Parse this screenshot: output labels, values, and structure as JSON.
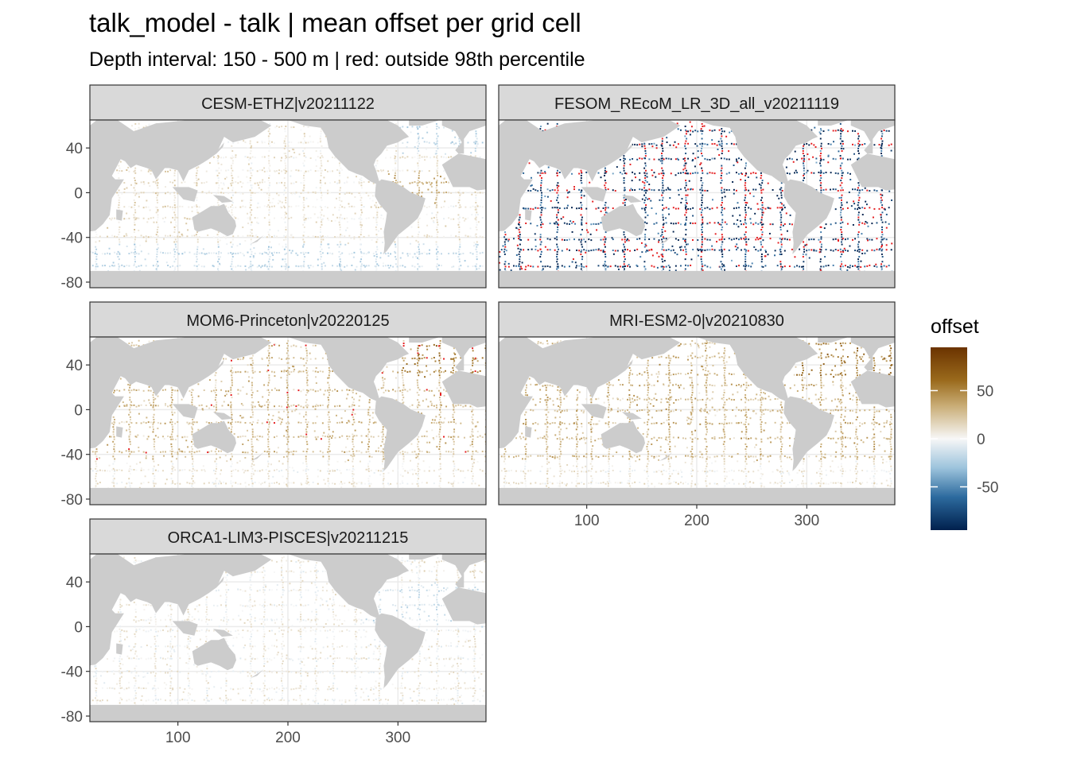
{
  "title": "talk_model - talk  | mean offset per grid cell",
  "subtitle": "Depth interval: 150 - 500 m | red: outside 98th percentile",
  "colors": {
    "land": "#cccccc",
    "ocean": "#ffffff",
    "grid": "#ebebeb",
    "strip": "#d9d9d9",
    "outlier": "#e41a1c",
    "scale_low": "#00204d",
    "scale_mid": "#f7f7f7",
    "scale_high": "#6b3300"
  },
  "chart_data": {
    "type": "heatmap",
    "description_style": "faceted geographic raster map (lon x lat) of mean offset per grid cell",
    "x": {
      "label": "",
      "ticks": [
        100,
        200,
        300
      ],
      "range": [
        20,
        380
      ]
    },
    "y": {
      "label": "",
      "ticks": [
        40,
        0,
        -40,
        -80
      ],
      "range": [
        -85,
        65
      ]
    },
    "legend": {
      "title": "offset",
      "position": "right",
      "ticks": [
        50,
        0,
        -50
      ],
      "range": [
        -95,
        95
      ]
    },
    "panels": [
      {
        "name": "CESM-ETHZ|v20211122",
        "bias": "warm_pacific_cool_south",
        "intensity": 0.45,
        "outliers": 0.02
      },
      {
        "name": "FESOM_REcoM_LR_3D_all_v20211119",
        "bias": "strong_negative",
        "intensity": 0.95,
        "outliers": 0.25
      },
      {
        "name": "MOM6-Princeton|v20220125",
        "bias": "positive",
        "intensity": 0.55,
        "outliers": 0.06
      },
      {
        "name": "MRI-ESM2-0|v20210830",
        "bias": "positive",
        "intensity": 0.6,
        "outliers": 0.0
      },
      {
        "name": "ORCA1-LIM3-PISCES|v20211215",
        "bias": "weak_mixed",
        "intensity": 0.3,
        "outliers": 0.01
      }
    ]
  }
}
